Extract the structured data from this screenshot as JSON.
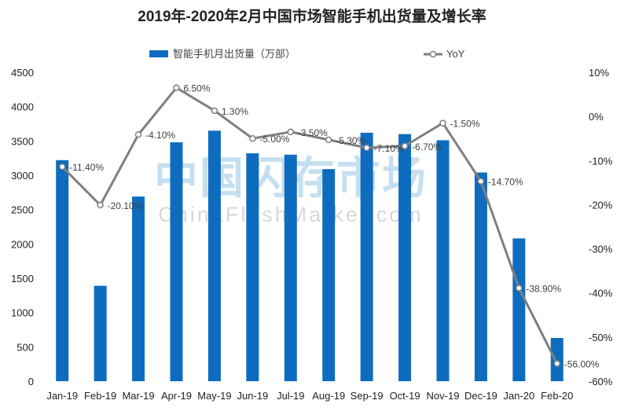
{
  "watermark": {
    "main": "中国闪存市场",
    "sub": "ChinaFlashMarket.com"
  },
  "chart_data": {
    "type": "bar",
    "title": "2019年-2020年2月中国市场智能手机出货量及增长率",
    "categories": [
      "Jan-19",
      "Feb-19",
      "Mar-19",
      "Apr-19",
      "May-19",
      "Jun-19",
      "Jul-19",
      "Aug-19",
      "Sep-19",
      "Oct-19",
      "Nov-19",
      "Dec-19",
      "Jan-20",
      "Feb-20"
    ],
    "series": [
      {
        "name": "智能手机月出货量（万部）",
        "type": "bar",
        "axis": "left",
        "color": "#0e6cbf",
        "values": [
          3220,
          1390,
          2690,
          3480,
          3650,
          3320,
          3300,
          3090,
          3620,
          3600,
          3510,
          3040,
          2080,
          630
        ]
      },
      {
        "name": "YoY",
        "type": "line",
        "axis": "right",
        "color": "#7f7f7f",
        "values": [
          -11.4,
          -20.1,
          -4.1,
          6.5,
          1.3,
          -5.0,
          -3.5,
          -5.3,
          -7.1,
          -6.7,
          -1.5,
          -14.7,
          -38.9,
          -56.0
        ],
        "labels": [
          "-11.40%",
          "-20.10%",
          "-4.10%",
          "6.50%",
          "1.30%",
          "-5.00%",
          "-3.50%",
          "-5.30%",
          "-7.10%",
          "-6.70%",
          "-1.50%",
          "-14.70%",
          "-38.90%",
          "-56.00%"
        ]
      }
    ],
    "y_left": {
      "ylim": [
        0,
        4500
      ],
      "ticks": [
        "0",
        "500",
        "1000",
        "1500",
        "2000",
        "2500",
        "3000",
        "3500",
        "4000",
        "4500"
      ]
    },
    "y_right": {
      "ylim": [
        -60,
        10
      ],
      "ticks": [
        "-60%",
        "-50%",
        "-40%",
        "-30%",
        "-20%",
        "-10%",
        "0%",
        "10%"
      ]
    },
    "legend_position": "top",
    "grid": false
  }
}
